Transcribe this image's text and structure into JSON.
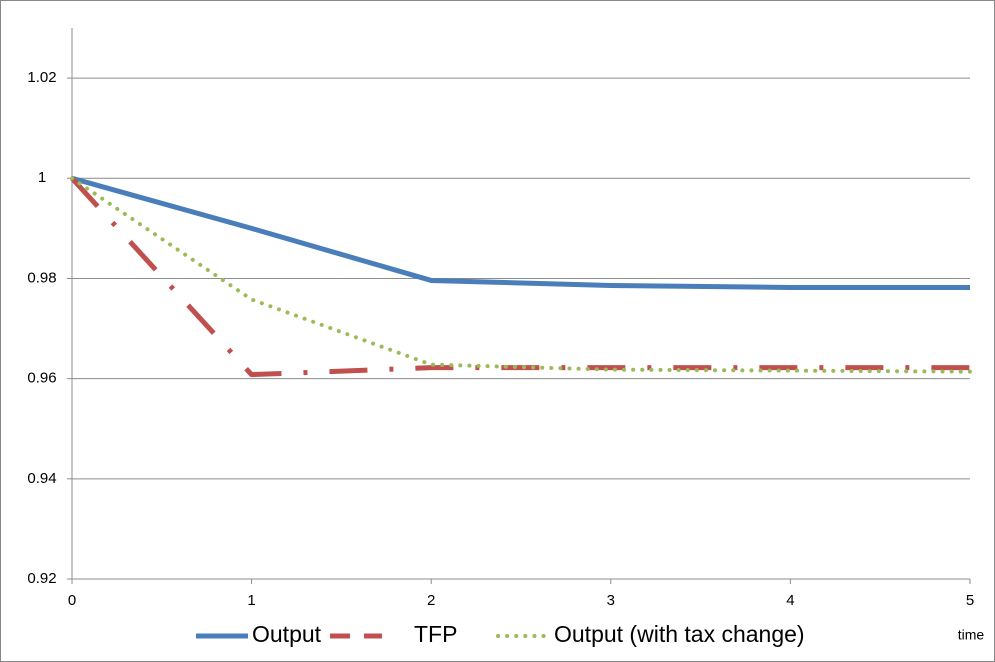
{
  "chart_data": {
    "type": "line",
    "x": [
      0,
      1,
      2,
      3,
      4,
      5
    ],
    "xlabel": "time",
    "series": [
      {
        "name": "Output",
        "color": "#4a7ebb",
        "style": "solid",
        "values": [
          1,
          0.99,
          0.9796,
          0.9786,
          0.9782,
          0.9782
        ]
      },
      {
        "name": "TFP",
        "color": "#c0504d",
        "style": "dash-dot",
        "values": [
          1,
          0.9608,
          0.9622,
          0.9622,
          0.9622,
          0.9622
        ]
      },
      {
        "name": "Output (with tax change)",
        "color": "#9bbb59",
        "style": "dotted",
        "values": [
          1,
          0.9758,
          0.9628,
          0.9618,
          0.9616,
          0.9614
        ]
      }
    ],
    "xlim": [
      0,
      5
    ],
    "xticks": [
      0,
      1,
      2,
      3,
      4,
      5
    ],
    "ylim": [
      0.92,
      1.03
    ],
    "yticks": [
      0.92,
      0.94,
      0.96,
      0.98,
      1,
      1.02
    ],
    "grid": true,
    "legend": "bottom"
  }
}
